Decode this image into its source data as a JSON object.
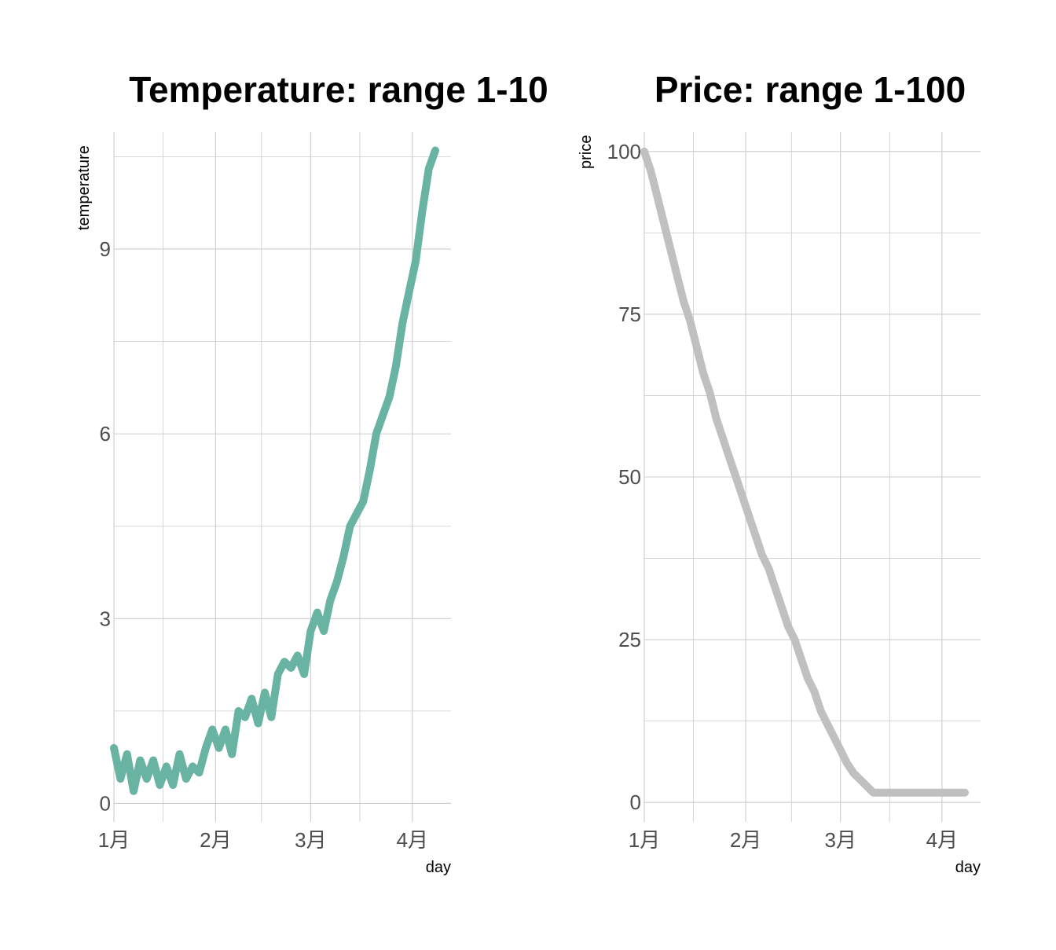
{
  "chart_data": [
    {
      "type": "line",
      "title": "Temperature: range 1-10",
      "xlabel": "day",
      "ylabel": "temperature",
      "x_ticks": [
        "1月",
        "2月",
        "3月",
        "4月"
      ],
      "y_ticks": [
        0,
        3,
        6,
        9
      ],
      "xlim": [
        "2024-01-01",
        "2024-04-08"
      ],
      "ylim": [
        -0.3,
        10.9
      ],
      "grid": true,
      "line_color": "#69b3a2",
      "series": [
        {
          "x": [
            "2024-01-01",
            "2024-01-03",
            "2024-01-05",
            "2024-01-07",
            "2024-01-09",
            "2024-01-11",
            "2024-01-13",
            "2024-01-15",
            "2024-01-17",
            "2024-01-19",
            "2024-01-21",
            "2024-01-23",
            "2024-01-25",
            "2024-01-27",
            "2024-01-29",
            "2024-01-31",
            "2024-02-02",
            "2024-02-04",
            "2024-02-06",
            "2024-02-08",
            "2024-02-10",
            "2024-02-12",
            "2024-02-14",
            "2024-02-16",
            "2024-02-18",
            "2024-02-20",
            "2024-02-22",
            "2024-02-24",
            "2024-02-26",
            "2024-02-28",
            "2024-03-01",
            "2024-03-03",
            "2024-03-05",
            "2024-03-07",
            "2024-03-09",
            "2024-03-11",
            "2024-03-13",
            "2024-03-15",
            "2024-03-17",
            "2024-03-19",
            "2024-03-21",
            "2024-03-23",
            "2024-03-25",
            "2024-03-27",
            "2024-03-29",
            "2024-03-31",
            "2024-04-02",
            "2024-04-04",
            "2024-04-06",
            "2024-04-08"
          ],
          "y": [
            0.9,
            0.4,
            0.8,
            0.2,
            0.7,
            0.4,
            0.7,
            0.3,
            0.6,
            0.3,
            0.8,
            0.4,
            0.6,
            0.5,
            0.9,
            1.2,
            0.9,
            1.2,
            0.8,
            1.5,
            1.4,
            1.7,
            1.3,
            1.8,
            1.4,
            2.1,
            2.3,
            2.2,
            2.4,
            2.1,
            2.8,
            3.1,
            2.8,
            3.3,
            3.6,
            4.0,
            4.5,
            4.7,
            4.9,
            5.4,
            6.0,
            6.3,
            6.6,
            7.1,
            7.8,
            8.3,
            8.8,
            9.6,
            10.3,
            10.6
          ]
        }
      ]
    },
    {
      "type": "line",
      "title": "Price: range 1-100",
      "xlabel": "day",
      "ylabel": "price",
      "x_ticks": [
        "1月",
        "2月",
        "3月",
        "4月"
      ],
      "y_ticks": [
        0,
        25,
        50,
        75,
        100
      ],
      "xlim": [
        "2024-01-01",
        "2024-04-08"
      ],
      "ylim": [
        -3,
        103
      ],
      "grid": true,
      "line_color": "#c0c0c0",
      "series": [
        {
          "x": [
            "2024-01-01",
            "2024-01-03",
            "2024-01-05",
            "2024-01-07",
            "2024-01-09",
            "2024-01-11",
            "2024-01-13",
            "2024-01-15",
            "2024-01-17",
            "2024-01-19",
            "2024-01-21",
            "2024-01-23",
            "2024-01-25",
            "2024-01-27",
            "2024-01-29",
            "2024-01-31",
            "2024-02-02",
            "2024-02-04",
            "2024-02-06",
            "2024-02-08",
            "2024-02-10",
            "2024-02-12",
            "2024-02-14",
            "2024-02-16",
            "2024-02-18",
            "2024-02-20",
            "2024-02-22",
            "2024-02-24",
            "2024-02-26",
            "2024-02-28",
            "2024-03-01",
            "2024-03-03",
            "2024-03-05",
            "2024-03-07",
            "2024-03-09",
            "2024-03-11",
            "2024-03-13",
            "2024-03-15",
            "2024-03-17",
            "2024-03-19",
            "2024-03-21",
            "2024-03-23",
            "2024-03-25",
            "2024-03-27",
            "2024-03-29",
            "2024-03-31",
            "2024-04-02",
            "2024-04-04",
            "2024-04-06",
            "2024-04-08"
          ],
          "y": [
            100,
            97,
            93,
            89,
            85,
            81,
            77,
            74,
            70,
            66,
            63,
            59,
            56,
            53,
            50,
            47,
            44,
            41,
            38,
            36,
            33,
            30,
            27,
            25,
            22,
            19,
            17,
            14,
            12,
            10,
            8,
            6,
            4.5,
            3.5,
            2.5,
            1.5,
            1.5,
            1.5,
            1.5,
            1.5,
            1.5,
            1.5,
            1.5,
            1.5,
            1.5,
            1.5,
            1.5,
            1.5,
            1.5,
            1.5
          ]
        }
      ]
    }
  ]
}
